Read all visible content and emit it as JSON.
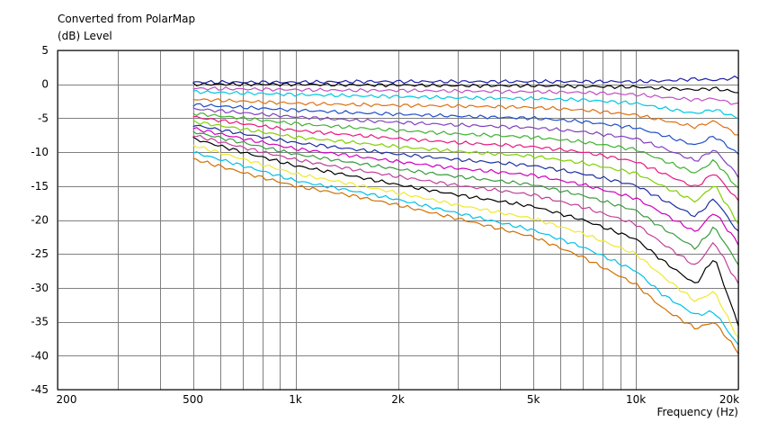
{
  "chart_data": {
    "type": "line",
    "title": "Converted from PolarMap",
    "ylabel": "(dB)  Level",
    "xlabel": "Frequency  (Hz)",
    "x_scale": "log",
    "xlim": [
      200,
      20000
    ],
    "ylim": [
      -45,
      5
    ],
    "grid": true,
    "yticks": [
      5,
      0,
      -5,
      -10,
      -15,
      -20,
      -25,
      -30,
      -35,
      -40,
      -45
    ],
    "xticks": [
      {
        "value": 200,
        "label": "200"
      },
      {
        "value": 500,
        "label": "500"
      },
      {
        "value": 1000,
        "label": "1k"
      },
      {
        "value": 2000,
        "label": "2k"
      },
      {
        "value": 5000,
        "label": "5k"
      },
      {
        "value": 10000,
        "label": "10k"
      },
      {
        "value": 20000,
        "label": "20k"
      }
    ],
    "x": [
      500,
      700,
      1000,
      1500,
      2000,
      3000,
      5000,
      7000,
      10000,
      12000,
      15000,
      17000,
      20000
    ],
    "series": [
      {
        "color": "#1f1fa8",
        "values": [
          0.3,
          0.3,
          0.3,
          0.4,
          0.4,
          0.4,
          0.4,
          0.4,
          0.4,
          0.5,
          0.8,
          0.6,
          1.0
        ]
      },
      {
        "color": "#000000",
        "values": [
          0.0,
          0.0,
          0.0,
          -0.1,
          -0.1,
          -0.2,
          -0.2,
          -0.3,
          -0.4,
          -0.6,
          -0.8,
          -0.6,
          -1.2
        ]
      },
      {
        "color": "#c050c0",
        "values": [
          -0.6,
          -0.7,
          -0.8,
          -0.9,
          -0.9,
          -1.0,
          -1.1,
          -1.2,
          -1.5,
          -1.9,
          -2.3,
          -2.1,
          -3.0
        ]
      },
      {
        "color": "#00c8e0",
        "values": [
          -1.1,
          -1.3,
          -1.5,
          -1.7,
          -1.8,
          -2.0,
          -2.1,
          -2.3,
          -2.8,
          -3.5,
          -4.3,
          -3.7,
          -5.0
        ]
      },
      {
        "color": "#e07010",
        "values": [
          -2.2,
          -2.5,
          -2.8,
          -3.0,
          -3.1,
          -3.2,
          -3.4,
          -3.8,
          -4.5,
          -5.3,
          -6.3,
          -5.4,
          -7.5
        ]
      },
      {
        "color": "#1f4fc8",
        "values": [
          -3.0,
          -3.4,
          -3.8,
          -4.2,
          -4.4,
          -4.7,
          -5.0,
          -5.5,
          -6.4,
          -7.5,
          -9.0,
          -7.6,
          -10.3
        ]
      },
      {
        "color": "#8040c0",
        "values": [
          -3.6,
          -4.2,
          -4.8,
          -5.3,
          -5.6,
          -6.0,
          -6.4,
          -7.0,
          -8.0,
          -9.4,
          -11.3,
          -9.6,
          -13.5
        ]
      },
      {
        "color": "#40b030",
        "values": [
          -4.3,
          -5.0,
          -5.8,
          -6.4,
          -6.8,
          -7.3,
          -7.8,
          -8.5,
          -9.6,
          -11.2,
          -13.1,
          -11.2,
          -15.4
        ]
      },
      {
        "color": "#e81880",
        "values": [
          -4.8,
          -5.8,
          -6.8,
          -7.5,
          -8.0,
          -8.6,
          -9.2,
          -10.0,
          -11.4,
          -13.1,
          -15.2,
          -13.0,
          -17.2
        ]
      },
      {
        "color": "#7fd000",
        "values": [
          -5.5,
          -6.6,
          -7.8,
          -8.6,
          -9.2,
          -9.9,
          -10.6,
          -11.6,
          -13.1,
          -15.0,
          -17.3,
          -14.8,
          -20.5
        ]
      },
      {
        "color": "#1f2fa0",
        "values": [
          -6.0,
          -7.3,
          -8.6,
          -9.6,
          -10.3,
          -11.1,
          -12.0,
          -13.2,
          -14.9,
          -17.0,
          -19.5,
          -16.8,
          -21.8
        ]
      },
      {
        "color": "#d000c0",
        "values": [
          -6.5,
          -8.0,
          -9.5,
          -10.6,
          -11.4,
          -12.4,
          -13.4,
          -14.8,
          -16.8,
          -19.0,
          -21.8,
          -18.8,
          -23.5
        ]
      },
      {
        "color": "#3a9a40",
        "values": [
          -7.0,
          -8.6,
          -10.3,
          -11.6,
          -12.5,
          -13.6,
          -14.8,
          -16.4,
          -18.6,
          -21.2,
          -24.2,
          -21.0,
          -26.5
        ]
      },
      {
        "color": "#c0409a",
        "values": [
          -7.5,
          -9.3,
          -11.1,
          -12.6,
          -13.6,
          -14.9,
          -16.3,
          -18.1,
          -20.6,
          -23.5,
          -26.8,
          -23.2,
          -29.5
        ]
      },
      {
        "color": "#000000",
        "values": [
          -8.0,
          -10.0,
          -12.0,
          -13.6,
          -14.8,
          -16.3,
          -18.0,
          -20.0,
          -22.8,
          -26.0,
          -29.5,
          -25.5,
          -35.5
        ]
      },
      {
        "color": "#f0e830",
        "values": [
          -9.0,
          -11.0,
          -13.2,
          -14.8,
          -16.0,
          -17.8,
          -19.8,
          -22.0,
          -25.0,
          -28.3,
          -32.0,
          -30.5,
          -37.5
        ]
      },
      {
        "color": "#00c0e8",
        "values": [
          -10.0,
          -12.0,
          -14.2,
          -15.8,
          -17.0,
          -19.0,
          -21.5,
          -24.0,
          -27.5,
          -31.0,
          -34.0,
          -33.5,
          -38.5
        ]
      },
      {
        "color": "#d07000",
        "values": [
          -11.0,
          -13.0,
          -15.0,
          -16.5,
          -17.8,
          -19.8,
          -22.5,
          -25.5,
          -29.5,
          -33.0,
          -36.0,
          -35.0,
          -39.5
        ]
      }
    ]
  }
}
